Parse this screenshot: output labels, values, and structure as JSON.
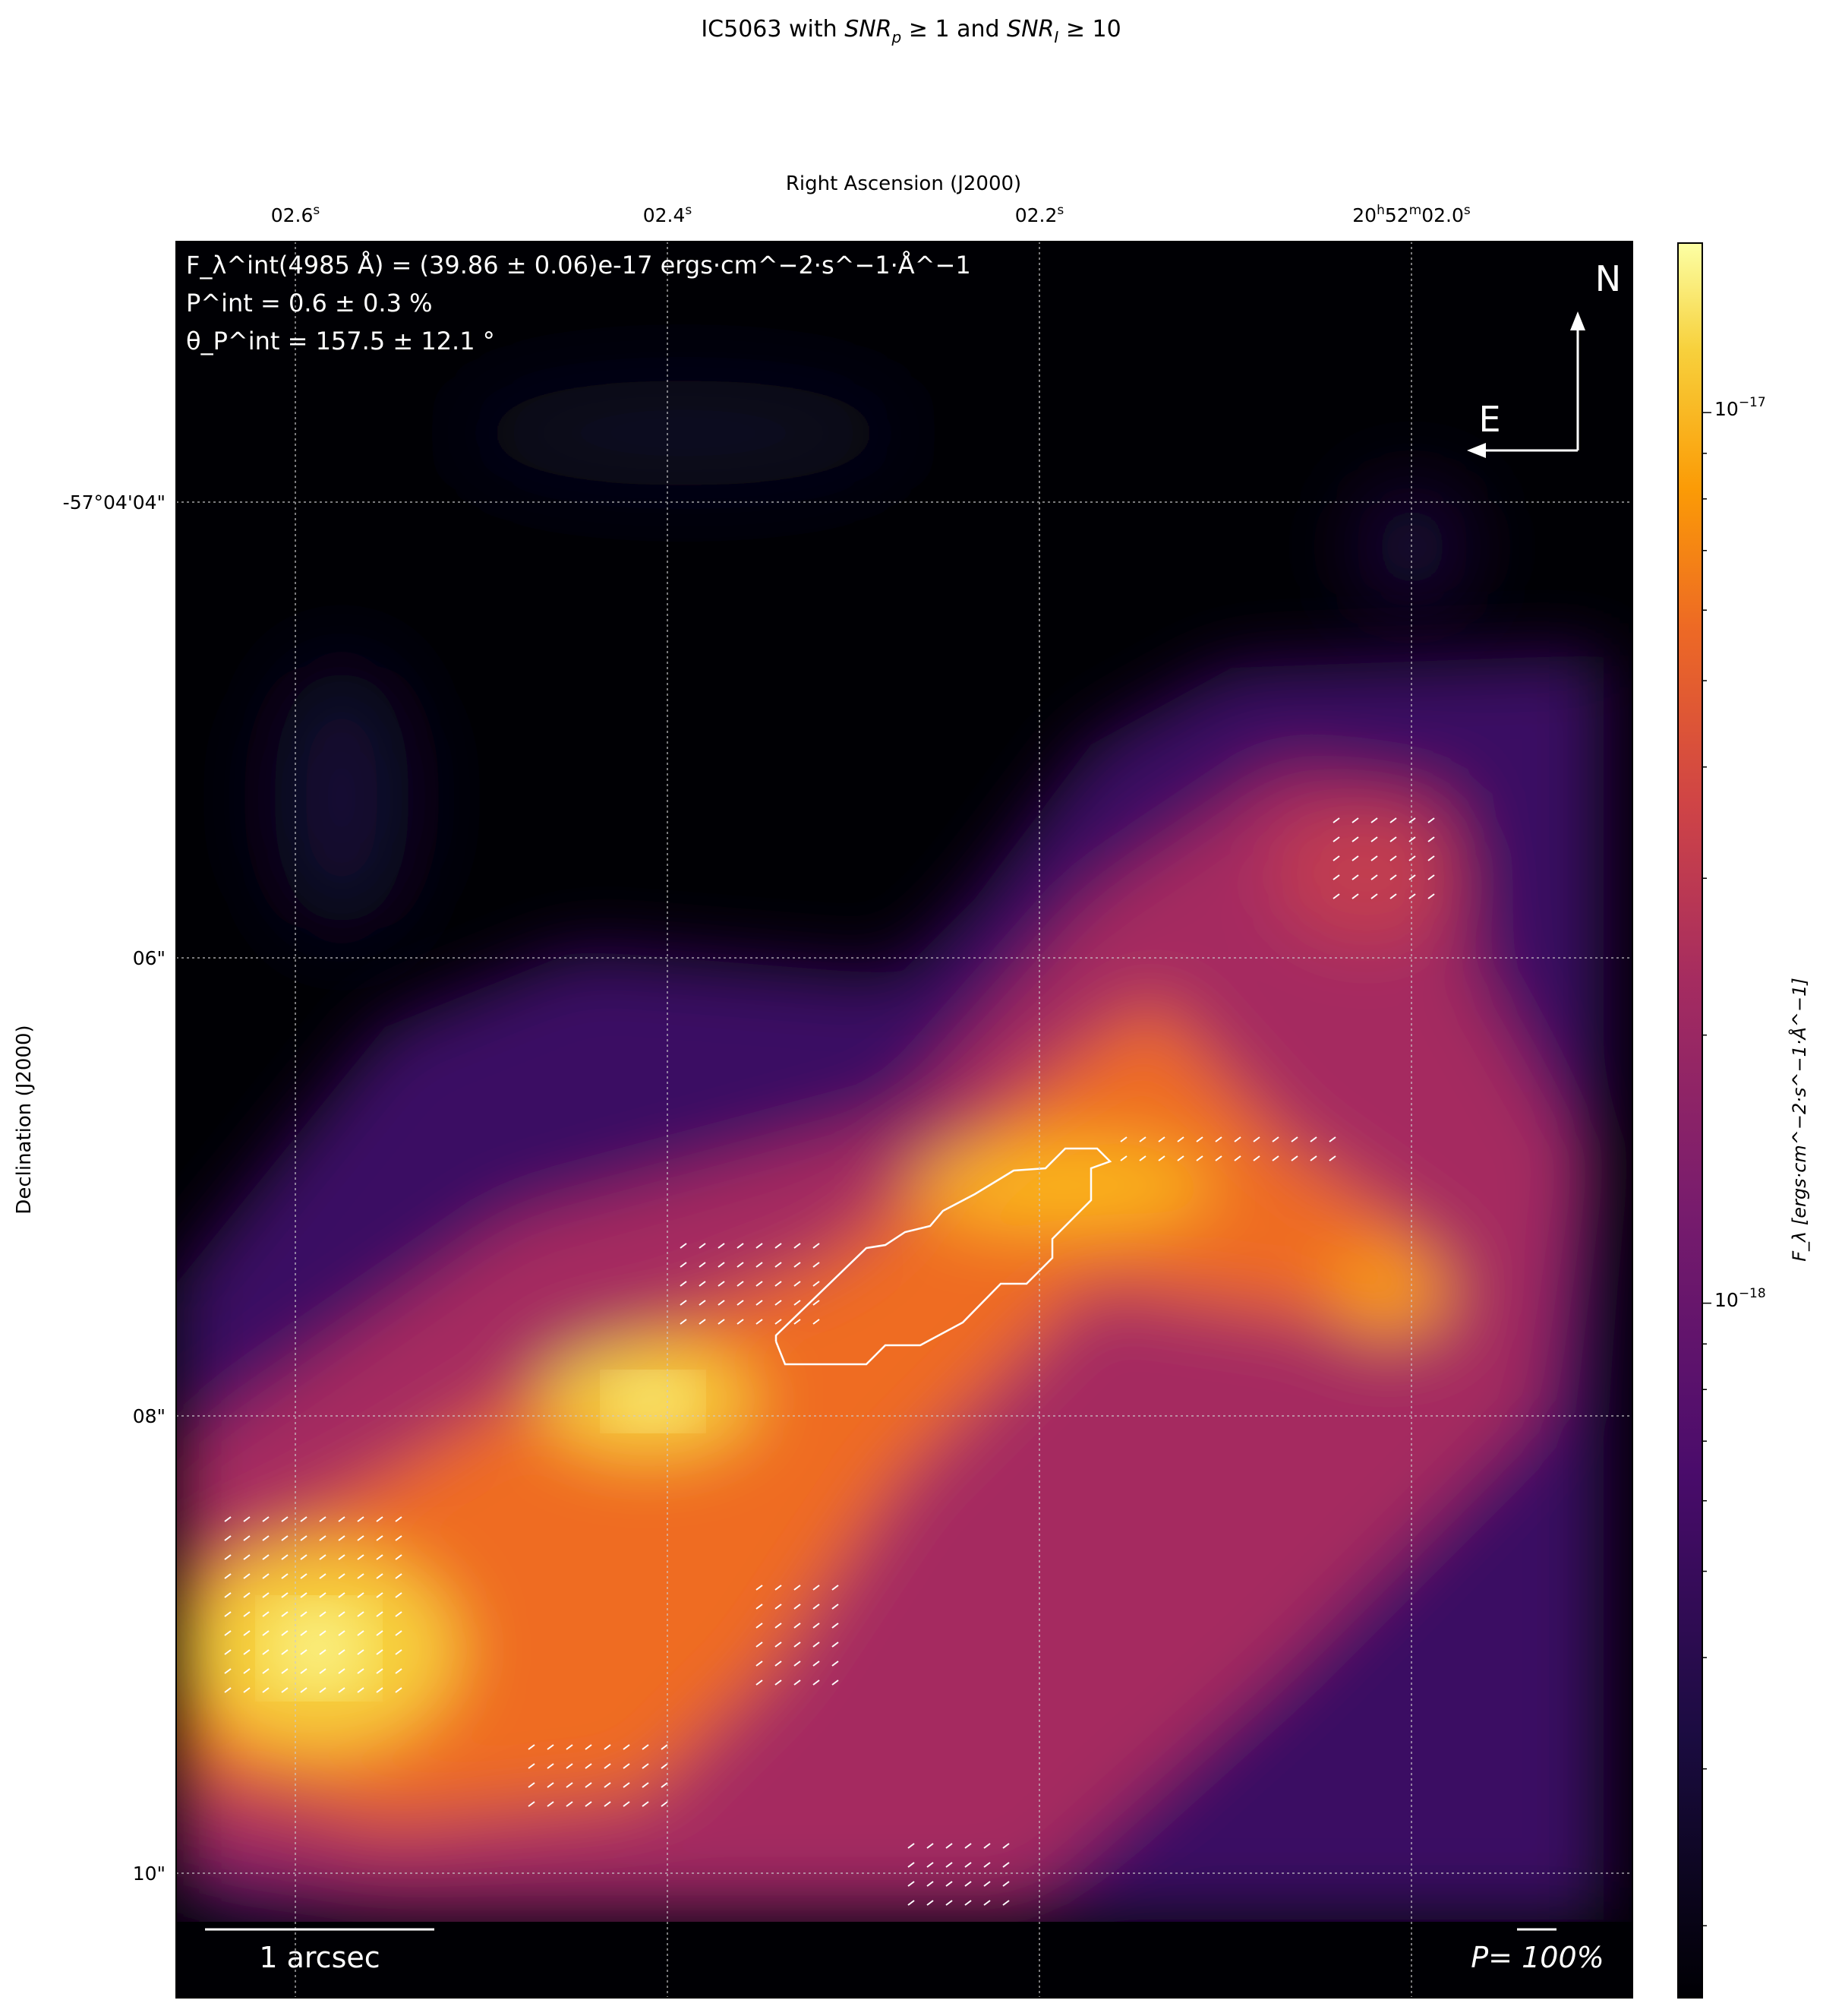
{
  "chart_data": {
    "type": "heatmap",
    "title": "IC5063 with SNR_p ≥ 1 and SNR_I ≥ 10",
    "title_parts": {
      "prefix": "IC5063 with ",
      "snrp": "SNR",
      "snrp_sub": "p",
      "mid": " ≥ 1 and ",
      "snri": "SNR",
      "snri_sub": "I",
      "suffix": " ≥ 10"
    },
    "xlabel": "Right Ascension (J2000)",
    "ylabel": "Declination (J2000)",
    "xticks": [
      {
        "main": "02.6",
        "sup": "s"
      },
      {
        "main": "02.4",
        "sup": "s"
      },
      {
        "main": "02.2",
        "sup": "s"
      },
      {
        "main": "20",
        "sup": "h",
        "main2": "52",
        "sup2": "m",
        "main3": "02.0",
        "sup3": "s"
      }
    ],
    "yticks": [
      "-57°04'04\"",
      "06\"",
      "08\"",
      "10\""
    ],
    "grid": true,
    "colormap": "inferno",
    "colorbar": {
      "scale": "log",
      "range": [
        1.66e-19,
        1.55e-17
      ],
      "ticks": [
        {
          "base": "10",
          "exp": "−17"
        },
        {
          "base": "10",
          "exp": "−18"
        }
      ],
      "label": "F_λ [ergs·cm^−2·s^−1·Å^−1]"
    },
    "annotations": {
      "flux": "F_λ^int(4985 Å) = (39.86 ± 0.06)e-17 ergs·cm^−2·s^−1·Å^−1",
      "polarization": "P^int = 0.6 ± 0.3 %",
      "angle": "θ_P^int = 157.5 ± 12.1 °"
    },
    "compass": {
      "north": "N",
      "east": "E"
    },
    "scale_bar": "1 arcsec",
    "vector_scale": "P= 100%",
    "colors": {
      "contour": "#ffffff",
      "background": "#000004"
    }
  }
}
